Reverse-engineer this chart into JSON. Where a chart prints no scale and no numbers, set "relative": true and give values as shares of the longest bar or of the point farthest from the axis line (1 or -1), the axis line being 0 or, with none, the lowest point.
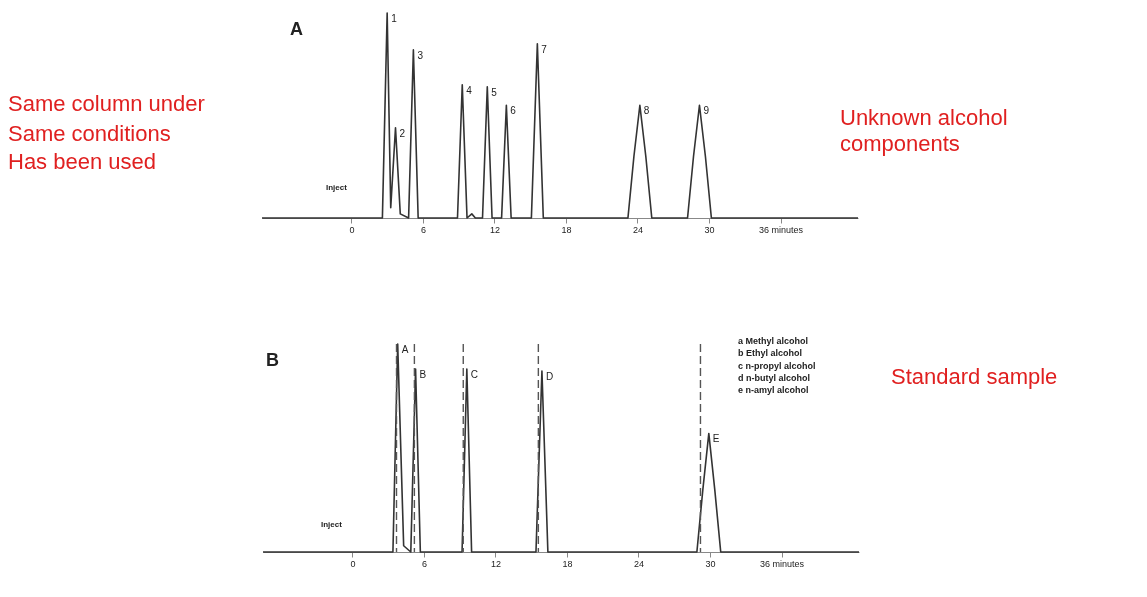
{
  "chart_data": [
    {
      "type": "line",
      "title": "A",
      "relative": true,
      "color": "#333333",
      "xlim": [
        -7.5,
        42.5
      ],
      "xticks": [
        0,
        6,
        12,
        18,
        24,
        30,
        {
          "value": 36,
          "label": "36 minutes"
        }
      ],
      "x": [
        -7.5,
        2.6,
        3.0,
        3.3,
        3.7,
        4.1,
        4.8,
        5.2,
        5.6,
        8.9,
        9.3,
        9.7,
        10.1,
        10.4,
        11.0,
        11.4,
        11.8,
        12.6,
        13.0,
        13.4,
        15.1,
        15.6,
        16.1,
        23.2,
        23.7,
        24.2,
        24.7,
        25.2,
        28.2,
        28.7,
        29.2,
        29.7,
        30.2,
        42.5
      ],
      "values": [
        0,
        0,
        1.0,
        0.05,
        0.44,
        0.02,
        0,
        0.82,
        0,
        0,
        0.65,
        0,
        0.02,
        0,
        0,
        0.64,
        0,
        0,
        0.55,
        0,
        0,
        0.85,
        0,
        0,
        0.3,
        0.55,
        0.3,
        0,
        0,
        0.3,
        0.55,
        0.3,
        0,
        0
      ],
      "annotations": [
        "Same column under",
        "Same conditions",
        "Has been used",
        "Unknown alcohol",
        "components",
        "Inject",
        {
          "text": "1",
          "x": 3.0,
          "y": 1.0
        },
        {
          "text": "2",
          "x": 3.7,
          "y": 0.44
        },
        {
          "text": "3",
          "x": 5.2,
          "y": 0.82
        },
        {
          "text": "4",
          "x": 9.3,
          "y": 0.65
        },
        {
          "text": "5",
          "x": 11.4,
          "y": 0.64
        },
        {
          "text": "6",
          "x": 13.0,
          "y": 0.55
        },
        {
          "text": "7",
          "x": 15.6,
          "y": 0.85
        },
        {
          "text": "8",
          "x": 24.2,
          "y": 0.55
        },
        {
          "text": "9",
          "x": 29.2,
          "y": 0.55
        }
      ]
    },
    {
      "type": "line",
      "title": "B",
      "relative": true,
      "color": "#333333",
      "xlim": [
        -7.5,
        42.5
      ],
      "xticks": [
        0,
        6,
        12,
        18,
        24,
        30,
        {
          "value": 36,
          "label": "36 minutes"
        }
      ],
      "x": [
        -7.5,
        3.4,
        3.8,
        4.3,
        4.9,
        5.3,
        5.7,
        9.2,
        9.6,
        10.0,
        15.4,
        15.9,
        16.4,
        28.9,
        29.4,
        29.9,
        30.4,
        30.9,
        42.5
      ],
      "values": [
        0,
        0,
        1.0,
        0.03,
        0,
        0.88,
        0,
        0,
        0.88,
        0,
        0,
        0.87,
        0,
        0,
        0.3,
        0.57,
        0.3,
        0,
        0
      ],
      "ref_lines": [
        {
          "axis": "x",
          "value": 3.7,
          "line_style": "dashed"
        },
        {
          "axis": "x",
          "value": 5.2,
          "line_style": "dashed"
        },
        {
          "axis": "x",
          "value": 9.3,
          "line_style": "dashed"
        },
        {
          "axis": "x",
          "value": 15.6,
          "line_style": "dashed"
        },
        {
          "axis": "x",
          "value": 29.2,
          "line_style": "dashed"
        }
      ],
      "annotations": [
        "Standard sample",
        "a Methyl alcohol",
        "b Ethyl alcohol",
        "c n-propyl alcohol",
        "d n-butyl alcohol",
        "e n-amyl alcohol",
        "Inject",
        {
          "text": "A",
          "x": 3.8,
          "y": 1.0
        },
        {
          "text": "B",
          "x": 5.3,
          "y": 0.88
        },
        {
          "text": "C",
          "x": 9.6,
          "y": 0.88
        },
        {
          "text": "D",
          "x": 15.9,
          "y": 0.87
        },
        {
          "text": "E",
          "x": 29.9,
          "y": 0.57
        }
      ]
    }
  ]
}
